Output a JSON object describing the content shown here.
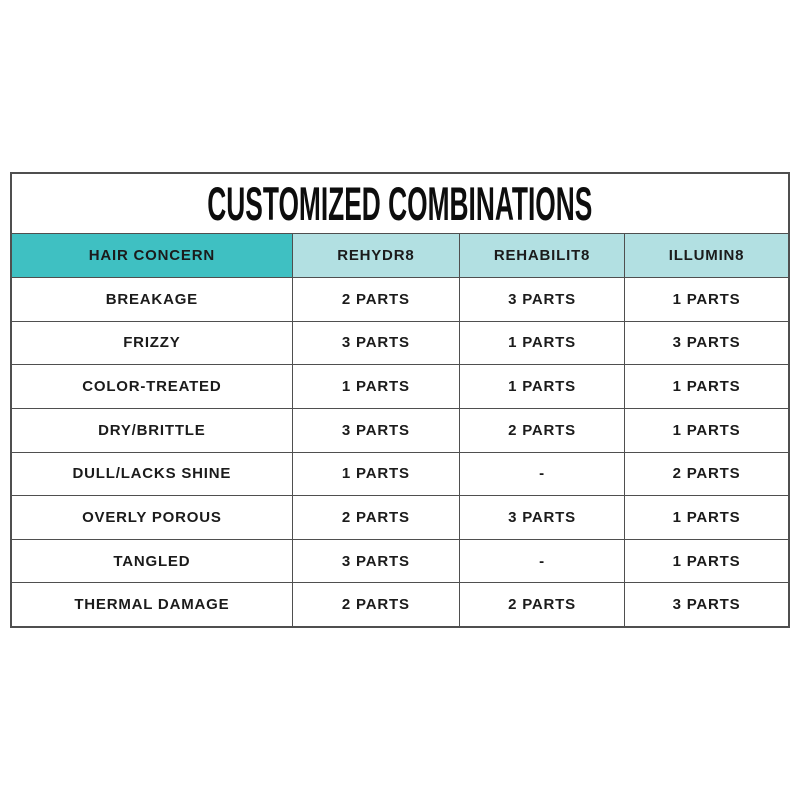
{
  "chart_data": {
    "type": "table",
    "title": "CUSTOMIZED COMBINATIONS",
    "columns": [
      "HAIR CONCERN",
      "REHYDR8",
      "REHABILIT8",
      "ILLUMIN8"
    ],
    "rows": [
      {
        "concern": "BREAKAGE",
        "values": [
          "2 PARTS",
          "3 PARTS",
          "1 PARTS"
        ]
      },
      {
        "concern": "FRIZZY",
        "values": [
          "3 PARTS",
          "1 PARTS",
          "3 PARTS"
        ]
      },
      {
        "concern": "COLOR-TREATED",
        "values": [
          "1 PARTS",
          "1 PARTS",
          "1 PARTS"
        ]
      },
      {
        "concern": "DRY/BRITTLE",
        "values": [
          "3 PARTS",
          "2 PARTS",
          "1 PARTS"
        ]
      },
      {
        "concern": "DULL/LACKS SHINE",
        "values": [
          "1 PARTS",
          "-",
          "2 PARTS"
        ]
      },
      {
        "concern": "OVERLY POROUS",
        "values": [
          "2 PARTS",
          "3 PARTS",
          "1 PARTS"
        ]
      },
      {
        "concern": "TANGLED",
        "values": [
          "3 PARTS",
          "-",
          "1 PARTS"
        ]
      },
      {
        "concern": "THERMAL DAMAGE",
        "values": [
          "2 PARTS",
          "2 PARTS",
          "3 PARTS"
        ]
      }
    ]
  },
  "colors": {
    "header_primary": "#3FC0C2",
    "header_secondary": "#B2E0E2",
    "grid_line": "#4F4F4F",
    "text": "#1B1B1B"
  }
}
